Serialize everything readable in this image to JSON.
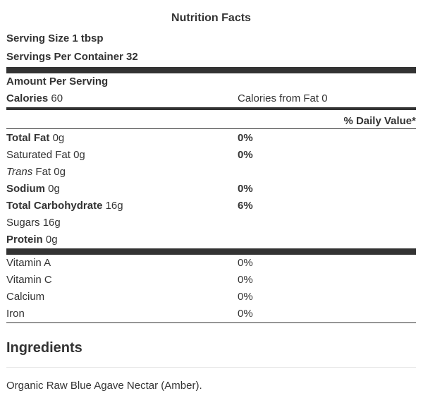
{
  "title": "Nutrition Facts",
  "serving_size": "Serving Size 1 tbsp",
  "servings_per_container": "Servings Per Container 32",
  "amount_per_serving": "Amount Per Serving",
  "calories": {
    "label": "Calories",
    "value": "60"
  },
  "calories_from_fat": "Calories from Fat 0",
  "daily_value_header": "% Daily Value*",
  "nutrients": [
    {
      "label": "Total Fat",
      "value": "0g",
      "dv": "0%"
    },
    {
      "label": "Saturated Fat",
      "value": "0g",
      "dv": "0%"
    },
    {
      "label": "Trans",
      "label_rest": "Fat",
      "value": "0g",
      "dv": ""
    },
    {
      "label": "Sodium",
      "value": "0g",
      "dv": "0%"
    },
    {
      "label": "Total Carbohydrate",
      "value": "16g",
      "dv": "6%"
    },
    {
      "label": "Sugars",
      "value": "16g",
      "dv": ""
    },
    {
      "label": "Protein",
      "value": "0g",
      "dv": ""
    }
  ],
  "vitamins": [
    {
      "label": "Vitamin A",
      "dv": "0%"
    },
    {
      "label": "Vitamin C",
      "dv": "0%"
    },
    {
      "label": "Calcium",
      "dv": "0%"
    },
    {
      "label": "Iron",
      "dv": "0%"
    }
  ],
  "ingredients": {
    "heading": "Ingredients",
    "text": "Organic Raw Blue Agave Nectar (Amber)."
  }
}
